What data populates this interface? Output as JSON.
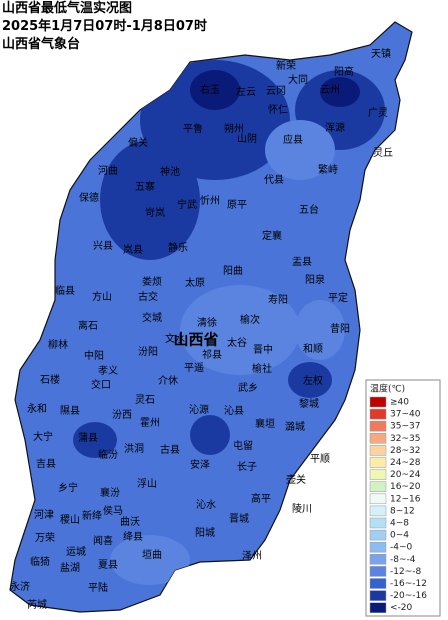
{
  "header": {
    "lines": [
      "山西省最低气温实况图",
      "2025年1月7日07时-1月8日07时",
      "山西省气象台"
    ]
  },
  "legend": {
    "title": "温度(℃)",
    "items": [
      {
        "label": "≥40",
        "color": "#c00000"
      },
      {
        "label": "37~40",
        "color": "#e23a2a"
      },
      {
        "label": "35~37",
        "color": "#f07a60"
      },
      {
        "label": "32~35",
        "color": "#f8a880"
      },
      {
        "label": "28~32",
        "color": "#fcd2a0"
      },
      {
        "label": "24~28",
        "color": "#fcecaa"
      },
      {
        "label": "20~24",
        "color": "#eef8b4"
      },
      {
        "label": "16~20",
        "color": "#d2f2c4"
      },
      {
        "label": "12~16",
        "color": "#eefaf4"
      },
      {
        "label": "8~12",
        "color": "#d4f0f8"
      },
      {
        "label": "4~8",
        "color": "#b4e0f4"
      },
      {
        "label": "0~4",
        "color": "#a0cff2"
      },
      {
        "label": "-4~0",
        "color": "#8cbcf0"
      },
      {
        "label": "-8~-4",
        "color": "#7aa4ea"
      },
      {
        "label": "-12~-8",
        "color": "#5a84e0"
      },
      {
        "label": "-16~-12",
        "color": "#3562cc"
      },
      {
        "label": "-20~-16",
        "color": "#1a3aa2"
      },
      {
        "label": "<-20",
        "color": "#0a1a78"
      }
    ]
  },
  "map": {
    "labels": [
      "天镇",
      "阳高",
      "新荣",
      "左云",
      "右玉",
      "大同",
      "云冈",
      "云州",
      "浑源",
      "广灵",
      "灵丘",
      "怀仁",
      "山阴",
      "应县",
      "朔州",
      "平鲁",
      "偏关",
      "河曲",
      "神池",
      "五寨",
      "宁武",
      "代县",
      "繁峙",
      "原平",
      "五台",
      "忻州",
      "保德",
      "岢岚",
      "静乐",
      "定襄",
      "兴县",
      "岚县",
      "盂县",
      "阳曲",
      "临县",
      "方山",
      "娄烦",
      "太原",
      "阳泉",
      "平定",
      "寿阳",
      "古交",
      "离石",
      "交城",
      "文水",
      "清徐",
      "榆次",
      "昔阳",
      "柳林",
      "中阳",
      "汾阳",
      "山西省",
      "祁县",
      "太谷",
      "和顺",
      "孝义",
      "平遥",
      "榆社",
      "左权",
      "石楼",
      "交口",
      "介休",
      "灵石",
      "武乡",
      "永和",
      "隰县",
      "汾西",
      "霍州",
      "沁源",
      "沁县",
      "黎城",
      "襄垣",
      "大宁",
      "蒲县",
      "洪洞",
      "古县",
      "安泽",
      "屯留",
      "长子",
      "潞城",
      "平顺",
      "吉县",
      "临汾",
      "乡宁",
      "襄汾",
      "浮山",
      "沁水",
      "高平",
      "陵川",
      "壶关",
      "河津",
      "稷山",
      "新绛",
      "侯马",
      "曲沃",
      "万荣",
      "闻喜",
      "绛县",
      "垣曲",
      "阳城",
      "晋城",
      "泽州",
      "临猗",
      "运城",
      "盐湖",
      "夏县",
      "永济",
      "平陆",
      "芮城",
      "晋中"
    ]
  }
}
